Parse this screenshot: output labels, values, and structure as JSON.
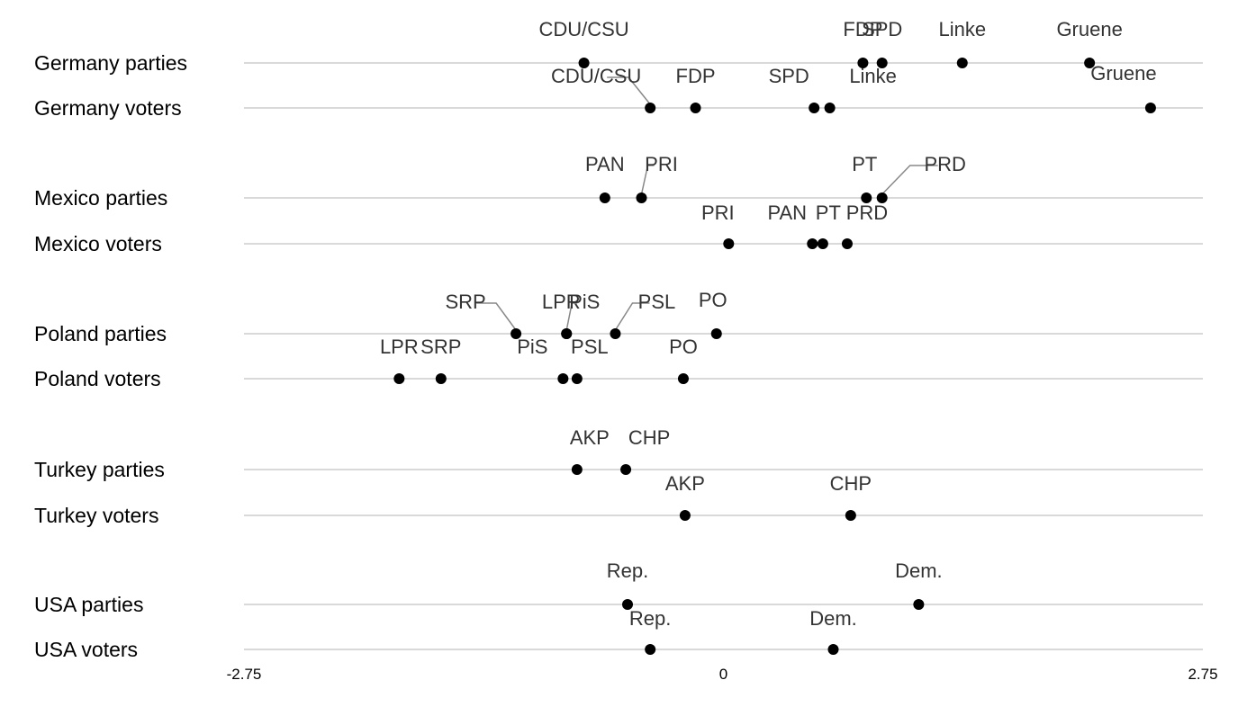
{
  "chart_data": {
    "type": "dot",
    "xlim": [
      -2.75,
      2.75
    ],
    "ticks": [
      {
        "value": -2.75,
        "label": "-2.75"
      },
      {
        "value": 0,
        "label": "0"
      },
      {
        "value": 2.75,
        "label": "2.75"
      }
    ],
    "grid": false,
    "legend": "none",
    "colors": {
      "point": "#000000",
      "line": "#d9d9d9",
      "leader": "#888888"
    },
    "rows": [
      {
        "label": "Germany parties",
        "points": [
          {
            "name": "CDU/CSU",
            "value": -0.8
          },
          {
            "name": "FDP",
            "value": 0.8
          },
          {
            "name": "SPD",
            "value": 0.91
          },
          {
            "name": "Linke",
            "value": 1.37
          },
          {
            "name": "Gruene",
            "value": 2.1
          }
        ]
      },
      {
        "label": "Germany voters",
        "points": [
          {
            "name": "CDU/CSU",
            "value": -0.42
          },
          {
            "name": "FDP",
            "value": -0.16
          },
          {
            "name": "SPD",
            "value": 0.52
          },
          {
            "name": "Linke",
            "value": 0.61
          },
          {
            "name": "Gruene",
            "value": 2.45
          }
        ]
      },
      {
        "label": "Mexico parties",
        "points": [
          {
            "name": "PAN",
            "value": -0.68
          },
          {
            "name": "PRI",
            "value": -0.47
          },
          {
            "name": "PT",
            "value": 0.82
          },
          {
            "name": "PRD",
            "value": 0.91
          }
        ]
      },
      {
        "label": "Mexico voters",
        "points": [
          {
            "name": "PRI",
            "value": 0.03
          },
          {
            "name": "PAN",
            "value": 0.51
          },
          {
            "name": "PT",
            "value": 0.57
          },
          {
            "name": "PRD",
            "value": 0.71
          }
        ]
      },
      {
        "label": "Poland parties",
        "points": [
          {
            "name": "SRP",
            "value": -1.19
          },
          {
            "name": "LPR",
            "value": -0.9
          },
          {
            "name": "PiS",
            "value": -0.9
          },
          {
            "name": "PSL",
            "value": -0.62
          },
          {
            "name": "PO",
            "value": -0.04
          }
        ]
      },
      {
        "label": "Poland voters",
        "points": [
          {
            "name": "LPR",
            "value": -1.86
          },
          {
            "name": "SRP",
            "value": -1.62
          },
          {
            "name": "PiS",
            "value": -0.92
          },
          {
            "name": "PSL",
            "value": -0.84
          },
          {
            "name": "PO",
            "value": -0.23
          }
        ]
      },
      {
        "label": "Turkey parties",
        "points": [
          {
            "name": "AKP",
            "value": -0.84
          },
          {
            "name": "CHP",
            "value": -0.56
          }
        ]
      },
      {
        "label": "Turkey voters",
        "points": [
          {
            "name": "AKP",
            "value": -0.22
          },
          {
            "name": "CHP",
            "value": 0.73
          }
        ]
      },
      {
        "label": "USA parties",
        "points": [
          {
            "name": "Rep.",
            "value": -0.55
          },
          {
            "name": "Dem.",
            "value": 1.12
          }
        ]
      },
      {
        "label": "USA voters",
        "points": [
          {
            "name": "Rep.",
            "value": -0.42
          },
          {
            "name": "Dem.",
            "value": 0.63
          }
        ]
      }
    ]
  }
}
